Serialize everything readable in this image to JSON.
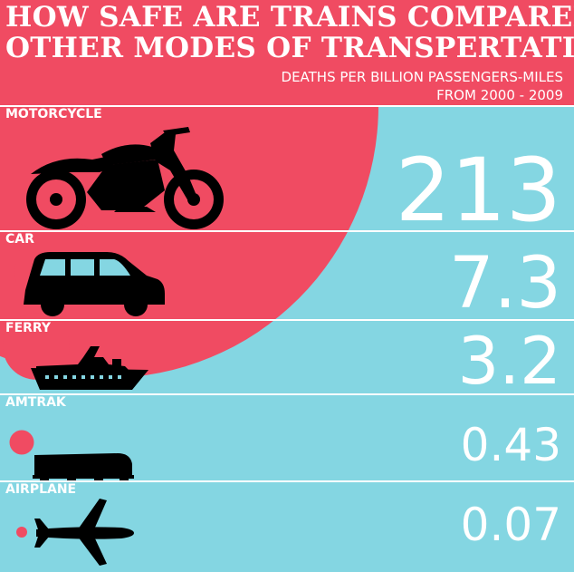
{
  "header": {
    "title_line1": "HOW SAFE ARE TRAINS COMPARED TO",
    "title_line2": "OTHER MODES OF TRANSPERTATION?",
    "subtitle_line1": "DEATHS PER BILLION PASSENGERS-MILES",
    "subtitle_line2": "FROM 2000 - 2009"
  },
  "colors": {
    "accent": "#f04b62",
    "background": "#84d6e2",
    "text": "#ffffff",
    "icon": "#000000"
  },
  "chart_data": {
    "type": "bubble",
    "title": "HOW SAFE ARE TRAINS COMPARED TO OTHER MODES OF TRANSPERTATION?",
    "subtitle": "DEATHS PER BILLION PASSENGERS-MILES FROM 2000 - 2009",
    "categories": [
      "MOTORCYCLE",
      "CAR",
      "FERRY",
      "AMTRAK",
      "AIRPLANE"
    ],
    "values": [
      213,
      7.3,
      3.2,
      0.43,
      0.07
    ],
    "labels": [
      "213",
      "7.3",
      "3.2",
      "0.43",
      "0.07"
    ],
    "icons": [
      "motorcycle-icon",
      "car-icon",
      "ferry-icon",
      "train-icon",
      "airplane-icon"
    ]
  }
}
